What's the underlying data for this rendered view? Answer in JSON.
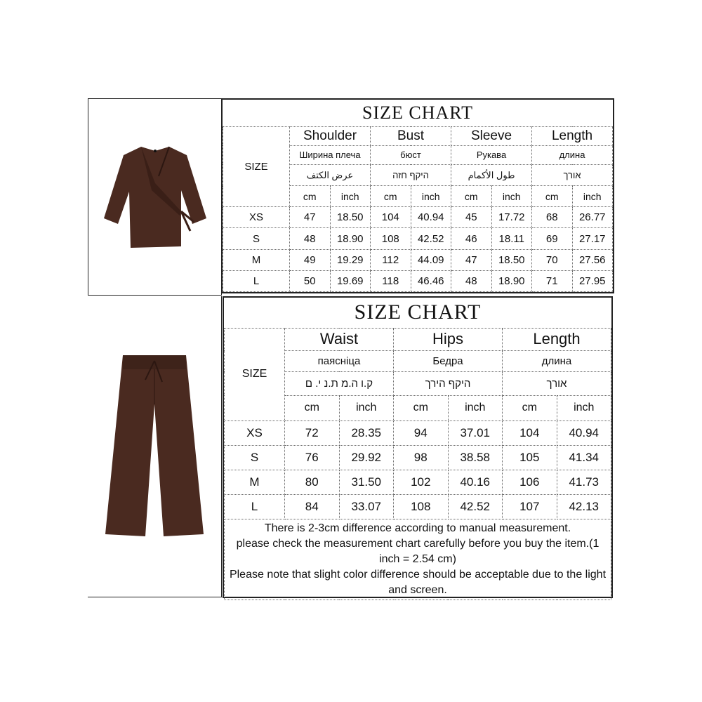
{
  "top": {
    "title": "SIZE CHART",
    "size_label": "SIZE",
    "columns": [
      {
        "en": "Shoulder",
        "ru": "Ширина плеча",
        "ar": "عرض الكتف"
      },
      {
        "en": "Bust",
        "ru": "бюст",
        "ar": "היקף חזה"
      },
      {
        "en": "Sleeve",
        "ru": "Рукава",
        "ar": "طول الأكمام"
      },
      {
        "en": "Length",
        "ru": "длина",
        "ar": "אורך"
      }
    ],
    "units": [
      "cm",
      "inch",
      "cm",
      "inch",
      "cm",
      "inch",
      "cm",
      "inch"
    ],
    "rows": [
      [
        "XS",
        "47",
        "18.50",
        "104",
        "40.94",
        "45",
        "17.72",
        "68",
        "26.77"
      ],
      [
        "S",
        "48",
        "18.90",
        "108",
        "42.52",
        "46",
        "18.11",
        "69",
        "27.17"
      ],
      [
        "M",
        "49",
        "19.29",
        "112",
        "44.09",
        "47",
        "18.50",
        "70",
        "27.56"
      ],
      [
        "L",
        "50",
        "19.69",
        "118",
        "46.46",
        "48",
        "18.90",
        "71",
        "27.95"
      ]
    ]
  },
  "bottom": {
    "title": "SIZE CHART",
    "size_label": "SIZE",
    "columns": [
      {
        "en": "Waist",
        "ru": "паясніца",
        "he": "ק.ו ה.מ ת.נ י. ם"
      },
      {
        "en": "Hips",
        "ru": "Бедра",
        "he": "היקף הירך"
      },
      {
        "en": "Length",
        "ru": "длина",
        "he": "אורך"
      }
    ],
    "units": [
      "cm",
      "inch",
      "cm",
      "inch",
      "cm",
      "inch"
    ],
    "rows": [
      [
        "XS",
        "72",
        "28.35",
        "94",
        "37.01",
        "104",
        "40.94"
      ],
      [
        "S",
        "76",
        "29.92",
        "98",
        "38.58",
        "105",
        "41.34"
      ],
      [
        "M",
        "80",
        "31.50",
        "102",
        "40.16",
        "106",
        "41.73"
      ],
      [
        "L",
        "84",
        "33.07",
        "108",
        "42.52",
        "107",
        "42.13"
      ]
    ],
    "notes": [
      "There is 2-3cm difference according to manual measurement.",
      "please check the measurement chart carefully before you buy the item.(1 inch = 2.54 cm)",
      "Please note that slight color difference should be acceptable due to the light and screen."
    ]
  },
  "colors": {
    "garment": "#4a2a20"
  }
}
